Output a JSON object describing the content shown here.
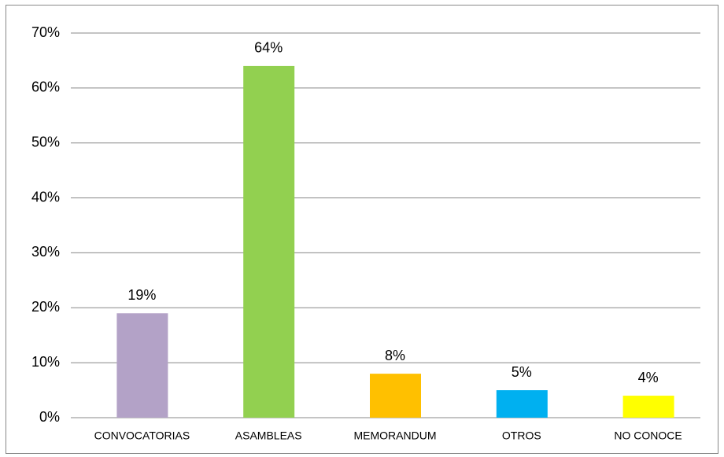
{
  "chart_data": {
    "type": "bar",
    "categories": [
      "CONVOCATORIAS",
      "ASAMBLEAS",
      "MEMORANDUM",
      "OTROS",
      "NO CONOCE"
    ],
    "values": [
      19,
      64,
      8,
      5,
      4
    ],
    "value_labels": [
      "19%",
      "64%",
      "8%",
      "5%",
      "4%"
    ],
    "colors": [
      "#b3a2c7",
      "#92d050",
      "#ffc000",
      "#00b0f0",
      "#ffff00"
    ],
    "ylim": [
      0,
      70
    ],
    "yticks": [
      {
        "value": 0,
        "label": "0%"
      },
      {
        "value": 10,
        "label": "10%"
      },
      {
        "value": 20,
        "label": "20%"
      },
      {
        "value": 30,
        "label": "30%"
      },
      {
        "value": 40,
        "label": "40%"
      },
      {
        "value": 50,
        "label": "50%"
      },
      {
        "value": 60,
        "label": "60%"
      },
      {
        "value": 70,
        "label": "70%"
      }
    ],
    "grid": true
  }
}
